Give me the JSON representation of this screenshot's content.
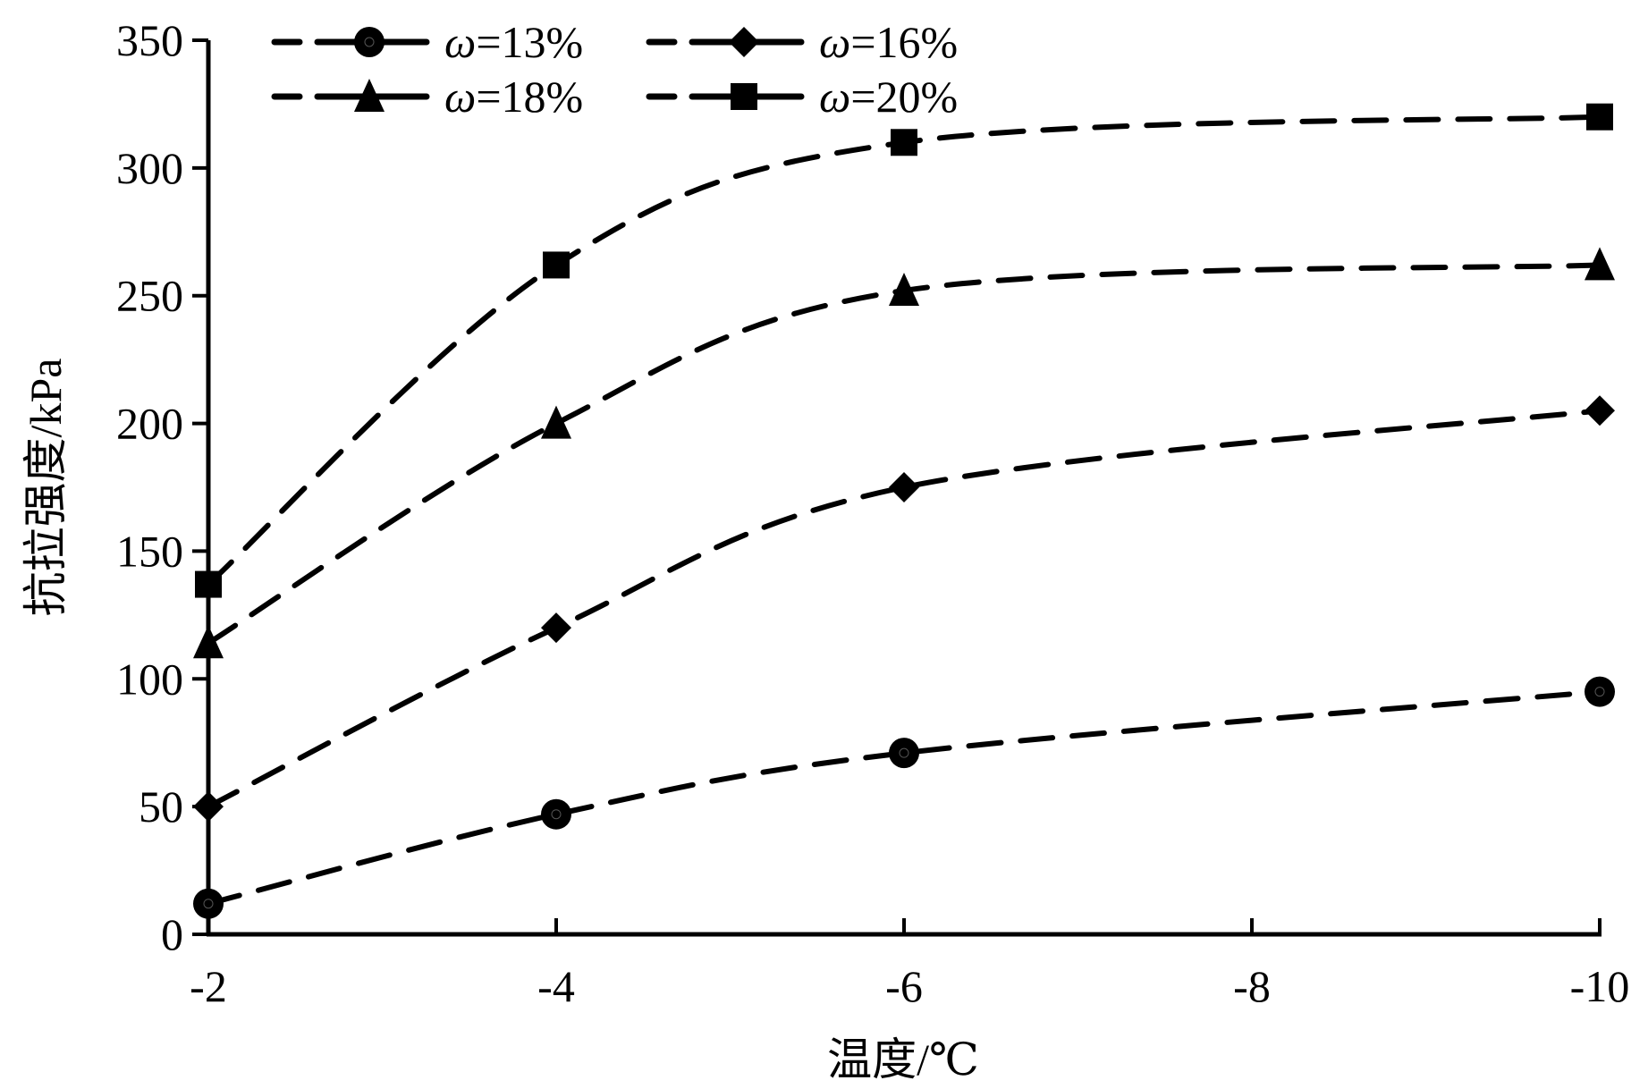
{
  "chart_data": {
    "type": "line",
    "title": "",
    "xlabel": "温度/℃",
    "ylabel": "抗拉强度/kPa",
    "x_ticks": [
      "-2",
      "-4",
      "-6",
      "-8",
      "-10"
    ],
    "y_ticks": [
      "0",
      "50",
      "100",
      "150",
      "200",
      "250",
      "300",
      "350"
    ],
    "ylim": [
      0,
      350
    ],
    "grid": false,
    "legend_position": "top-left",
    "x": [
      "-2",
      "-4",
      "-6",
      "-10"
    ],
    "series": [
      {
        "name": "ω=13%",
        "prefix": "ω",
        "suffix": "=13%",
        "marker": "circle",
        "values": [
          12,
          47,
          71,
          95
        ]
      },
      {
        "name": "ω=16%",
        "prefix": "ω",
        "suffix": "=16%",
        "marker": "diamond",
        "values": [
          50,
          120,
          175,
          205
        ]
      },
      {
        "name": "ω=18%",
        "prefix": "ω",
        "suffix": "=18%",
        "marker": "triangle",
        "values": [
          114,
          200,
          252,
          262
        ]
      },
      {
        "name": "ω=20%",
        "prefix": "ω",
        "suffix": "=20%",
        "marker": "square",
        "values": [
          137,
          262,
          310,
          320
        ]
      }
    ],
    "color": "#000000"
  }
}
